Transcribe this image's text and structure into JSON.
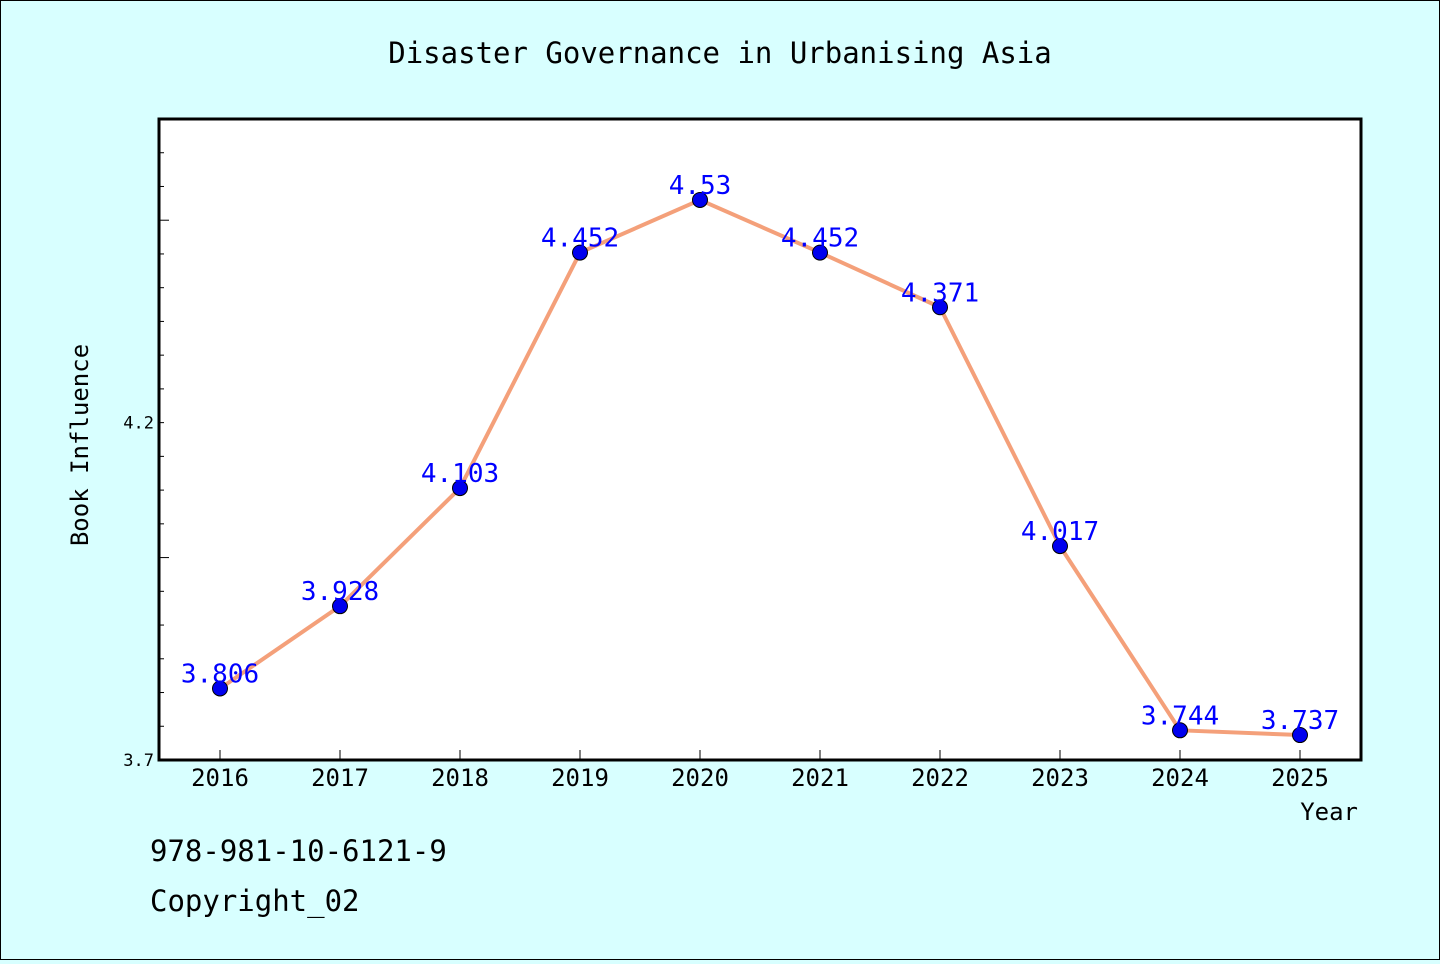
{
  "chart_data": {
    "type": "line",
    "title": "Disaster Governance in Urbanising Asia",
    "xlabel": "Year",
    "ylabel": "Book Influence",
    "categories": [
      "2016",
      "2017",
      "2018",
      "2019",
      "2020",
      "2021",
      "2022",
      "2023",
      "2024",
      "2025"
    ],
    "series": [
      {
        "values": [
          3.806,
          3.928,
          4.103,
          4.452,
          4.53,
          4.452,
          4.371,
          4.017,
          3.744,
          3.737
        ],
        "labels": [
          "3.806",
          "3.928",
          "4.103",
          "4.452",
          "4.53",
          "4.452",
          "4.371",
          "4.017",
          "3.744",
          "3.737"
        ]
      }
    ],
    "y_tick_labels": [
      "3.7",
      "4.2"
    ],
    "y_tick_values": [
      3.7,
      4.2
    ],
    "ylim": [
      3.7,
      4.65
    ],
    "grid": false,
    "legend": "none",
    "colors": {
      "background": "#d8ffff",
      "plot_background": "#ffffff",
      "line": "#f4a07a",
      "marker": "#0000ee",
      "data_label": "#0000ff"
    }
  },
  "footer": {
    "isbn": "978-981-10-6121-9",
    "copyright": "Copyright_02"
  }
}
